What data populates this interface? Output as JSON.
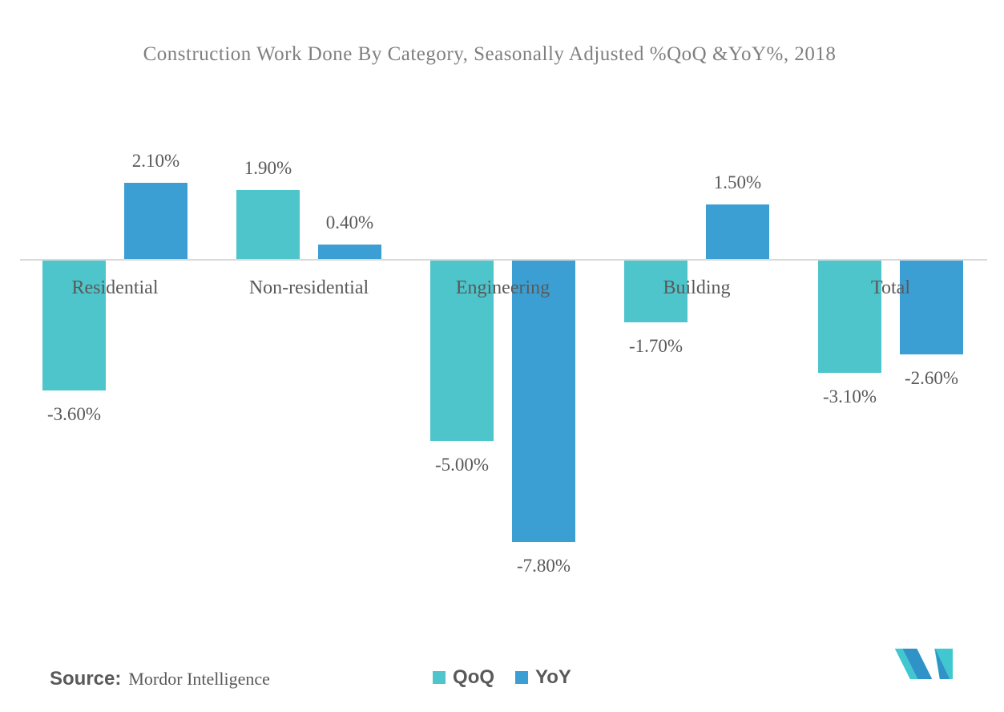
{
  "chart_data": {
    "type": "bar",
    "title": "Construction Work Done By Category, Seasonally Adjusted %QoQ &YoY%, 2018",
    "categories": [
      "Residential",
      "Non-residential",
      "Engineering",
      "Building",
      "Total"
    ],
    "series": [
      {
        "name": "QoQ",
        "color": "#4EC4CB",
        "values": [
          -3.6,
          1.9,
          -5.0,
          -1.7,
          -3.1
        ],
        "labels": [
          "-3.60%",
          "1.90%",
          "-5.00%",
          "-1.70%",
          "-3.10%"
        ]
      },
      {
        "name": "YoY",
        "color": "#3C9FD4",
        "values": [
          2.1,
          0.4,
          -7.8,
          1.5,
          -2.6
        ],
        "labels": [
          "2.10%",
          "0.40%",
          "-7.80%",
          "1.50%",
          "-2.60%"
        ]
      }
    ],
    "xlabel": "",
    "ylabel": "",
    "ylim": [
      -8.5,
      3
    ],
    "grid": false,
    "legend_position": "bottom-center",
    "baseline": 0,
    "value_format": "0.00%"
  },
  "source": {
    "label": "Source:",
    "value": "Mordor Intelligence"
  },
  "colors": {
    "background": "#FFFFFF",
    "axis_line": "#D9D9D9",
    "title_text": "#7F7F7F",
    "label_text": "#595959",
    "qoq_bar": "#4EC4CB",
    "yoy_bar": "#3C9FD4"
  },
  "logo": {
    "name": "mordor-intelligence-logo",
    "teal": "#41C7CF",
    "blue": "#2F93C8"
  }
}
